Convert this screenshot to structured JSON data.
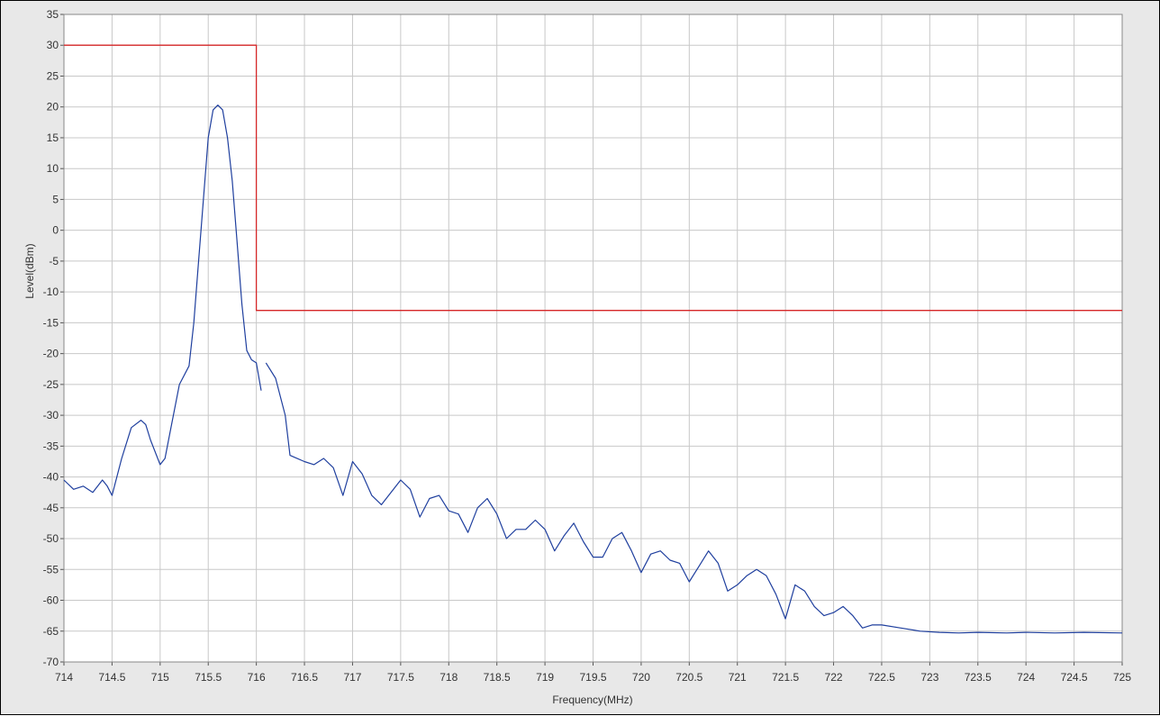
{
  "chart_data": {
    "type": "line",
    "title": "",
    "xlabel": "Frequency(MHz)",
    "ylabel": "Level(dBm)",
    "xlim": [
      714,
      725
    ],
    "ylim": [
      -70,
      35
    ],
    "x_ticks": [
      714,
      714.5,
      715,
      715.5,
      716,
      716.5,
      717,
      717.5,
      718,
      718.5,
      719,
      719.5,
      720,
      720.5,
      721,
      721.5,
      722,
      722.5,
      723,
      723.5,
      724,
      724.5,
      725
    ],
    "x_tick_labels": [
      "714",
      "714.5",
      "715",
      "715.5",
      "716",
      "716.5",
      "717",
      "717.5",
      "718",
      "718.5",
      "719",
      "719.5",
      "720",
      "720.5",
      "721",
      "721.5",
      "722",
      "722.5",
      "723",
      "723.5",
      "724",
      "724.5",
      "725"
    ],
    "y_ticks": [
      35,
      30,
      25,
      20,
      15,
      10,
      5,
      0,
      -5,
      -10,
      -15,
      -20,
      -25,
      -30,
      -35,
      -40,
      -45,
      -50,
      -55,
      -60,
      -65,
      -70
    ],
    "y_tick_labels": [
      "35",
      "30",
      "25",
      "20",
      "15",
      "10",
      "5",
      "0",
      "-5",
      "-10",
      "-15",
      "-20",
      "-25",
      "-30",
      "-35",
      "-40",
      "-45",
      "-50",
      "-55",
      "-60",
      "-65",
      "-70"
    ],
    "grid": true,
    "legend": "none",
    "series": [
      {
        "color": "#d62728",
        "x": [
          714,
          716,
          716,
          725
        ],
        "y": [
          30,
          30,
          -13,
          -13
        ]
      },
      {
        "color": "#1f3f9e",
        "segments": [
          {
            "x": [
              714.0,
              714.1,
              714.2,
              714.3,
              714.4,
              714.45,
              714.5,
              714.6,
              714.7,
              714.8,
              714.85,
              714.9,
              715.0,
              715.05,
              715.1,
              715.2,
              715.3,
              715.35,
              715.4,
              715.5,
              715.55,
              715.6,
              715.65,
              715.7,
              715.75,
              715.8,
              715.85,
              715.9,
              715.95,
              716.0,
              716.05
            ],
            "y": [
              -40.5,
              -42.0,
              -41.5,
              -42.5,
              -40.5,
              -41.5,
              -43.0,
              -37.0,
              -32.0,
              -30.8,
              -31.5,
              -34.0,
              -38.0,
              -37.0,
              -33.0,
              -25.0,
              -22.0,
              -15.0,
              -5.0,
              15.0,
              19.5,
              20.3,
              19.5,
              15.0,
              8.0,
              -2.0,
              -12.0,
              -19.5,
              -21.0,
              -21.5,
              -26.0
            ]
          },
          {
            "x": [
              716.1,
              716.2,
              716.3,
              716.35,
              716.5,
              716.6,
              716.7,
              716.8,
              716.9,
              717.0,
              717.1,
              717.2,
              717.3,
              717.5,
              717.6,
              717.7,
              717.8,
              717.9,
              718.0,
              718.1,
              718.2,
              718.3,
              718.4,
              718.5,
              718.6,
              718.7,
              718.8,
              718.9,
              719.0,
              719.1,
              719.2,
              719.3,
              719.4,
              719.5,
              719.6,
              719.7,
              719.8,
              719.9,
              720.0,
              720.1,
              720.2,
              720.3,
              720.4,
              720.5,
              720.6,
              720.7,
              720.8,
              720.9,
              721.0,
              721.1,
              721.2,
              721.3,
              721.4,
              721.5,
              721.6,
              721.7,
              721.8,
              721.9,
              722.0,
              722.1,
              722.2,
              722.3,
              722.4,
              722.5,
              722.7,
              722.9,
              723.1,
              723.3,
              723.5,
              723.8,
              724.0,
              724.3,
              724.6,
              725.0
            ],
            "y": [
              -21.5,
              -24.0,
              -30.0,
              -36.5,
              -37.5,
              -38.0,
              -37.0,
              -38.5,
              -43.0,
              -37.5,
              -39.5,
              -43.0,
              -44.5,
              -40.5,
              -42.0,
              -46.5,
              -43.5,
              -43.0,
              -45.5,
              -46.0,
              -49.0,
              -45.0,
              -43.5,
              -46.0,
              -50.0,
              -48.5,
              -48.5,
              -47.0,
              -48.5,
              -52.0,
              -49.5,
              -47.5,
              -50.5,
              -53.0,
              -53.0,
              -50.0,
              -49.0,
              -52.0,
              -55.5,
              -52.5,
              -52.0,
              -53.5,
              -54.0,
              -57.0,
              -54.5,
              -52.0,
              -54.0,
              -58.5,
              -57.5,
              -56.0,
              -55.0,
              -56.0,
              -59.0,
              -63.0,
              -57.5,
              -58.5,
              -61.0,
              -62.5,
              -62.0,
              -61.0,
              -62.5,
              -64.5,
              -64.0,
              -64.0,
              -64.5,
              -65.0,
              -65.2,
              -65.3,
              -65.2,
              -65.3,
              -65.2,
              -65.3,
              -65.2,
              -65.3
            ]
          }
        ]
      }
    ]
  }
}
